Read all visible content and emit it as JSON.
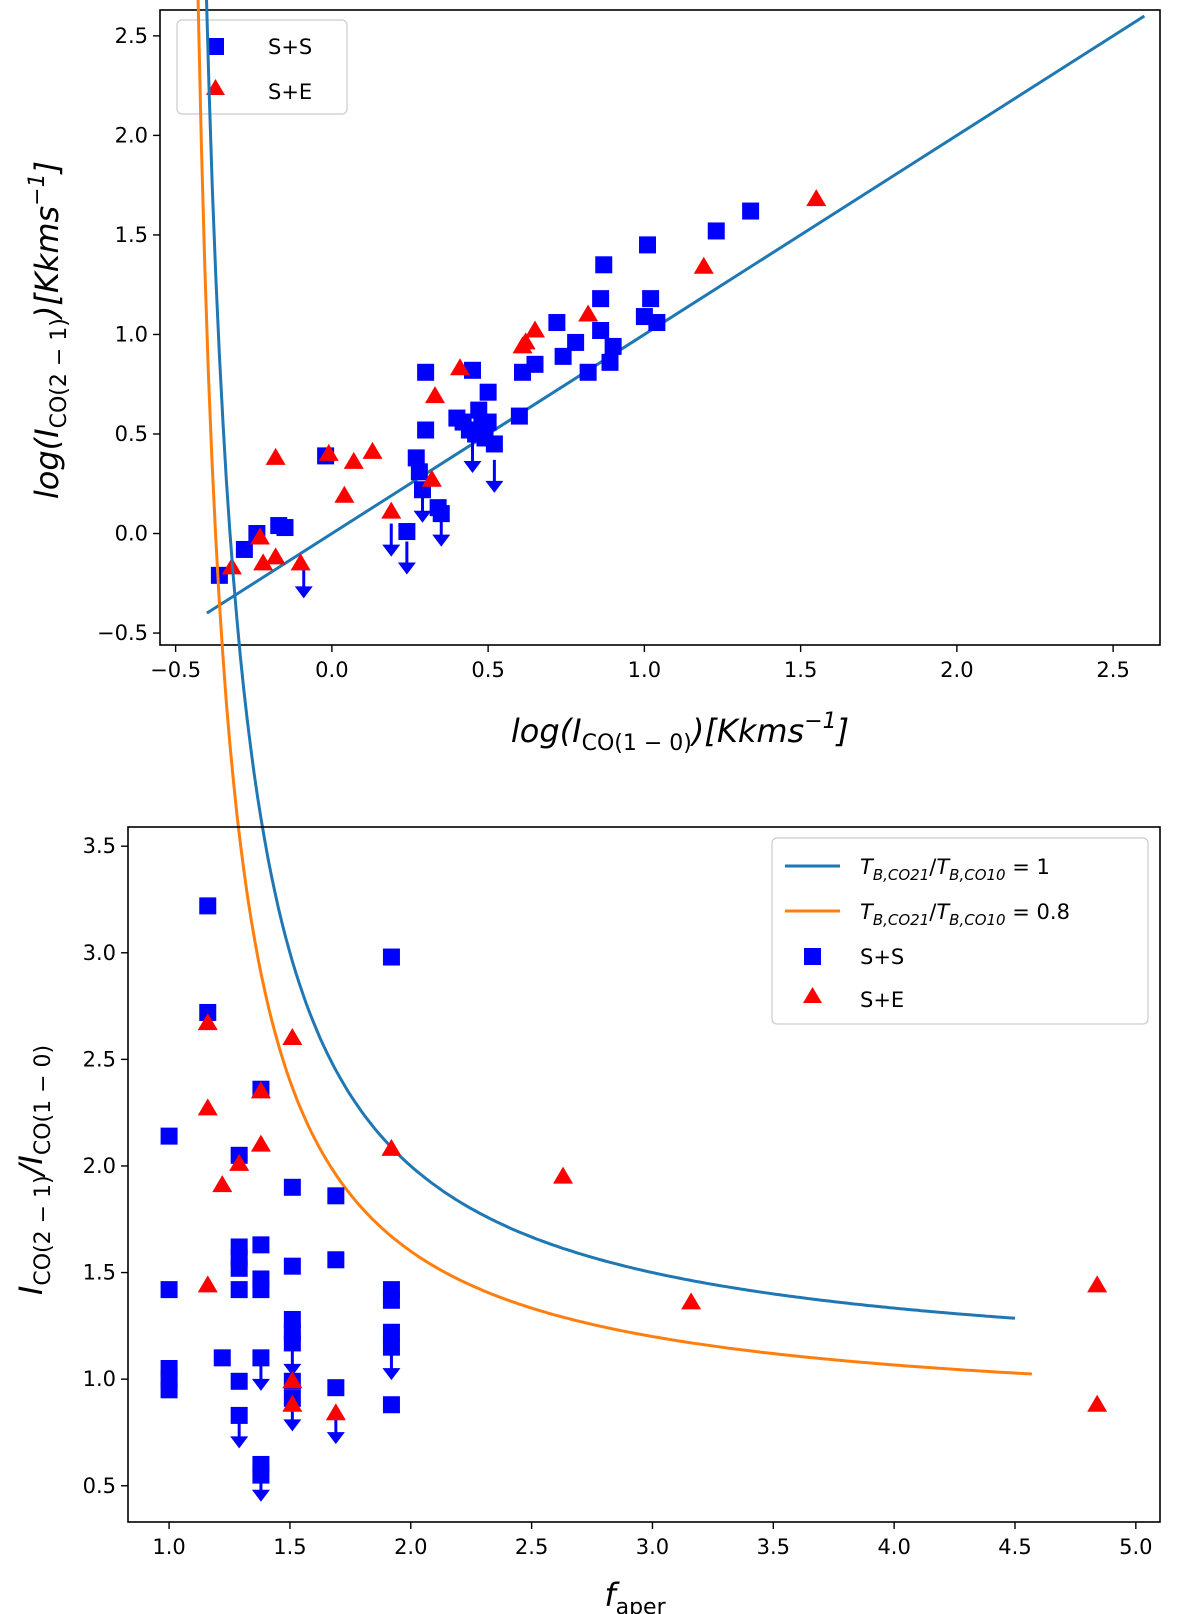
{
  "chart_data": [
    {
      "type": "scatter",
      "xlabel": "log(I_CO(1-0))[Kkms^-1]",
      "ylabel": "log(I_CO(2-1))[Kkms^-1]",
      "xlim": [
        -0.55,
        2.65
      ],
      "ylim": [
        -0.56,
        2.63
      ],
      "x_ticks": [
        "−0.5",
        "0.0",
        "0.5",
        "1.0",
        "1.5",
        "2.0",
        "2.5"
      ],
      "y_ticks": [
        "−0.5",
        "0.0",
        "0.5",
        "1.0",
        "1.5",
        "2.0",
        "2.5"
      ],
      "x_tick_values": [
        -0.5,
        0.0,
        0.5,
        1.0,
        1.5,
        2.0,
        2.5
      ],
      "y_tick_values": [
        -0.5,
        0.0,
        0.5,
        1.0,
        1.5,
        2.0,
        2.5
      ],
      "legend_position": "top-left",
      "grid": false,
      "lines": [
        {
          "x": [
            -0.4,
            2.6
          ],
          "y": [
            -0.4,
            2.6
          ],
          "color": "#1f77b4"
        }
      ],
      "series": [
        {
          "name": "S+S",
          "marker": "square",
          "color": "#0000ff",
          "points": [
            [
              -0.36,
              -0.21
            ],
            [
              -0.28,
              -0.08
            ],
            [
              -0.24,
              0.0
            ],
            [
              -0.17,
              0.04
            ],
            [
              -0.15,
              0.03
            ],
            [
              -0.02,
              0.39
            ],
            [
              0.24,
              0.01
            ],
            [
              0.27,
              0.38
            ],
            [
              0.28,
              0.31
            ],
            [
              0.29,
              0.22
            ],
            [
              0.3,
              0.81
            ],
            [
              0.3,
              0.52
            ],
            [
              0.34,
              0.13
            ],
            [
              0.35,
              0.1
            ],
            [
              0.4,
              0.58
            ],
            [
              0.42,
              0.56
            ],
            [
              0.44,
              0.52
            ],
            [
              0.45,
              0.82
            ],
            [
              0.46,
              0.5
            ],
            [
              0.47,
              0.62
            ],
            [
              0.48,
              0.55
            ],
            [
              0.49,
              0.48
            ],
            [
              0.5,
              0.71
            ],
            [
              0.5,
              0.56
            ],
            [
              0.52,
              0.45
            ],
            [
              0.6,
              0.59
            ],
            [
              0.61,
              0.81
            ],
            [
              0.65,
              0.85
            ],
            [
              0.72,
              1.06
            ],
            [
              0.74,
              0.89
            ],
            [
              0.78,
              0.96
            ],
            [
              0.82,
              0.81
            ],
            [
              0.86,
              1.18
            ],
            [
              0.86,
              1.02
            ],
            [
              0.87,
              1.35
            ],
            [
              0.89,
              0.86
            ],
            [
              0.9,
              0.94
            ],
            [
              1.0,
              1.09
            ],
            [
              1.01,
              1.45
            ],
            [
              1.02,
              1.18
            ],
            [
              1.04,
              1.06
            ],
            [
              1.23,
              1.52
            ],
            [
              1.34,
              1.62
            ]
          ],
          "upper_limits": [
            [
              -0.09,
              -0.16
            ],
            [
              0.19,
              0.05
            ],
            [
              0.24,
              -0.04
            ],
            [
              0.29,
              0.22
            ],
            [
              0.35,
              0.1
            ],
            [
              0.45,
              0.47
            ],
            [
              0.52,
              0.37
            ]
          ]
        },
        {
          "name": "S+E",
          "marker": "triangle",
          "color": "#ff0000",
          "points": [
            [
              -0.32,
              -0.17
            ],
            [
              -0.23,
              -0.02
            ],
            [
              -0.22,
              -0.15
            ],
            [
              -0.18,
              0.38
            ],
            [
              -0.18,
              -0.12
            ],
            [
              -0.1,
              -0.15
            ],
            [
              -0.01,
              0.4
            ],
            [
              0.04,
              0.19
            ],
            [
              0.07,
              0.36
            ],
            [
              0.13,
              0.41
            ],
            [
              0.19,
              0.11
            ],
            [
              0.32,
              0.27
            ],
            [
              0.33,
              0.69
            ],
            [
              0.41,
              0.83
            ],
            [
              0.61,
              0.94
            ],
            [
              0.62,
              0.96
            ],
            [
              0.65,
              1.02
            ],
            [
              0.82,
              1.1
            ],
            [
              1.19,
              1.34
            ],
            [
              1.55,
              1.68
            ]
          ]
        }
      ]
    },
    {
      "type": "scatter",
      "xlabel": "f_aper",
      "ylabel": "I_CO(2-1)/I_CO(1-0)",
      "xlim": [
        0.83,
        5.1
      ],
      "ylim": [
        0.33,
        3.59
      ],
      "x_ticks": [
        "1.0",
        "1.5",
        "2.0",
        "2.5",
        "3.0",
        "3.5",
        "4.0",
        "4.5",
        "5.0"
      ],
      "y_ticks": [
        "0.5",
        "1.0",
        "1.5",
        "2.0",
        "2.5",
        "3.0",
        "3.5"
      ],
      "x_tick_values": [
        1.0,
        1.5,
        2.0,
        2.5,
        3.0,
        3.5,
        4.0,
        4.5,
        5.0
      ],
      "y_tick_values": [
        0.5,
        1.0,
        1.5,
        2.0,
        2.5,
        3.0,
        3.5
      ],
      "legend_position": "top-right",
      "grid": false,
      "curves": [
        {
          "name": "T_B,CO21/T_B,CO10 = 1",
          "ratio": 1.0,
          "x_range": [
            1.05,
            4.5
          ],
          "color": "#1f77b4"
        },
        {
          "name": "T_B,CO21/T_B,CO10 = 0.8",
          "ratio": 0.8,
          "x_range": [
            1.03,
            4.57
          ],
          "color": "#ff7f0e"
        }
      ],
      "series": [
        {
          "name": "S+S",
          "marker": "square",
          "color": "#0000ff",
          "points": [
            [
              1.0,
              2.14
            ],
            [
              1.0,
              1.42
            ],
            [
              1.0,
              1.05
            ],
            [
              1.0,
              1.0
            ],
            [
              1.0,
              0.95
            ],
            [
              1.16,
              3.22
            ],
            [
              1.16,
              2.72
            ],
            [
              1.22,
              1.1
            ],
            [
              1.29,
              2.05
            ],
            [
              1.29,
              1.62
            ],
            [
              1.29,
              1.57
            ],
            [
              1.29,
              1.52
            ],
            [
              1.29,
              1.42
            ],
            [
              1.29,
              0.99
            ],
            [
              1.29,
              0.83
            ],
            [
              1.38,
              2.36
            ],
            [
              1.38,
              1.63
            ],
            [
              1.38,
              1.47
            ],
            [
              1.38,
              1.42
            ],
            [
              1.38,
              1.1
            ],
            [
              1.38,
              0.6
            ],
            [
              1.38,
              0.55
            ],
            [
              1.51,
              1.9
            ],
            [
              1.51,
              1.53
            ],
            [
              1.51,
              1.28
            ],
            [
              1.51,
              1.22
            ],
            [
              1.51,
              1.17
            ],
            [
              1.51,
              0.99
            ],
            [
              1.51,
              0.91
            ],
            [
              1.69,
              1.86
            ],
            [
              1.69,
              1.56
            ],
            [
              1.69,
              0.96
            ],
            [
              1.92,
              2.98
            ],
            [
              1.92,
              1.42
            ],
            [
              1.92,
              1.37
            ],
            [
              1.92,
              1.22
            ],
            [
              1.92,
              1.15
            ],
            [
              1.92,
              0.88
            ]
          ],
          "upper_limits": [
            [
              1.29,
              0.83
            ],
            [
              1.38,
              1.1
            ],
            [
              1.38,
              0.58
            ],
            [
              1.51,
              1.17
            ],
            [
              1.51,
              0.91
            ],
            [
              1.69,
              0.85
            ],
            [
              1.92,
              1.15
            ]
          ]
        },
        {
          "name": "S+E",
          "marker": "triangle",
          "color": "#ff0000",
          "points": [
            [
              1.16,
              2.67
            ],
            [
              1.16,
              2.27
            ],
            [
              1.16,
              1.44
            ],
            [
              1.22,
              1.91
            ],
            [
              1.29,
              2.01
            ],
            [
              1.38,
              2.35
            ],
            [
              1.38,
              2.1
            ],
            [
              1.51,
              2.6
            ],
            [
              1.51,
              0.99
            ],
            [
              1.51,
              0.88
            ],
            [
              1.69,
              0.84
            ],
            [
              1.92,
              2.08
            ],
            [
              2.63,
              1.95
            ],
            [
              3.16,
              1.36
            ],
            [
              4.84,
              1.44
            ],
            [
              4.84,
              0.88
            ]
          ]
        }
      ]
    }
  ]
}
